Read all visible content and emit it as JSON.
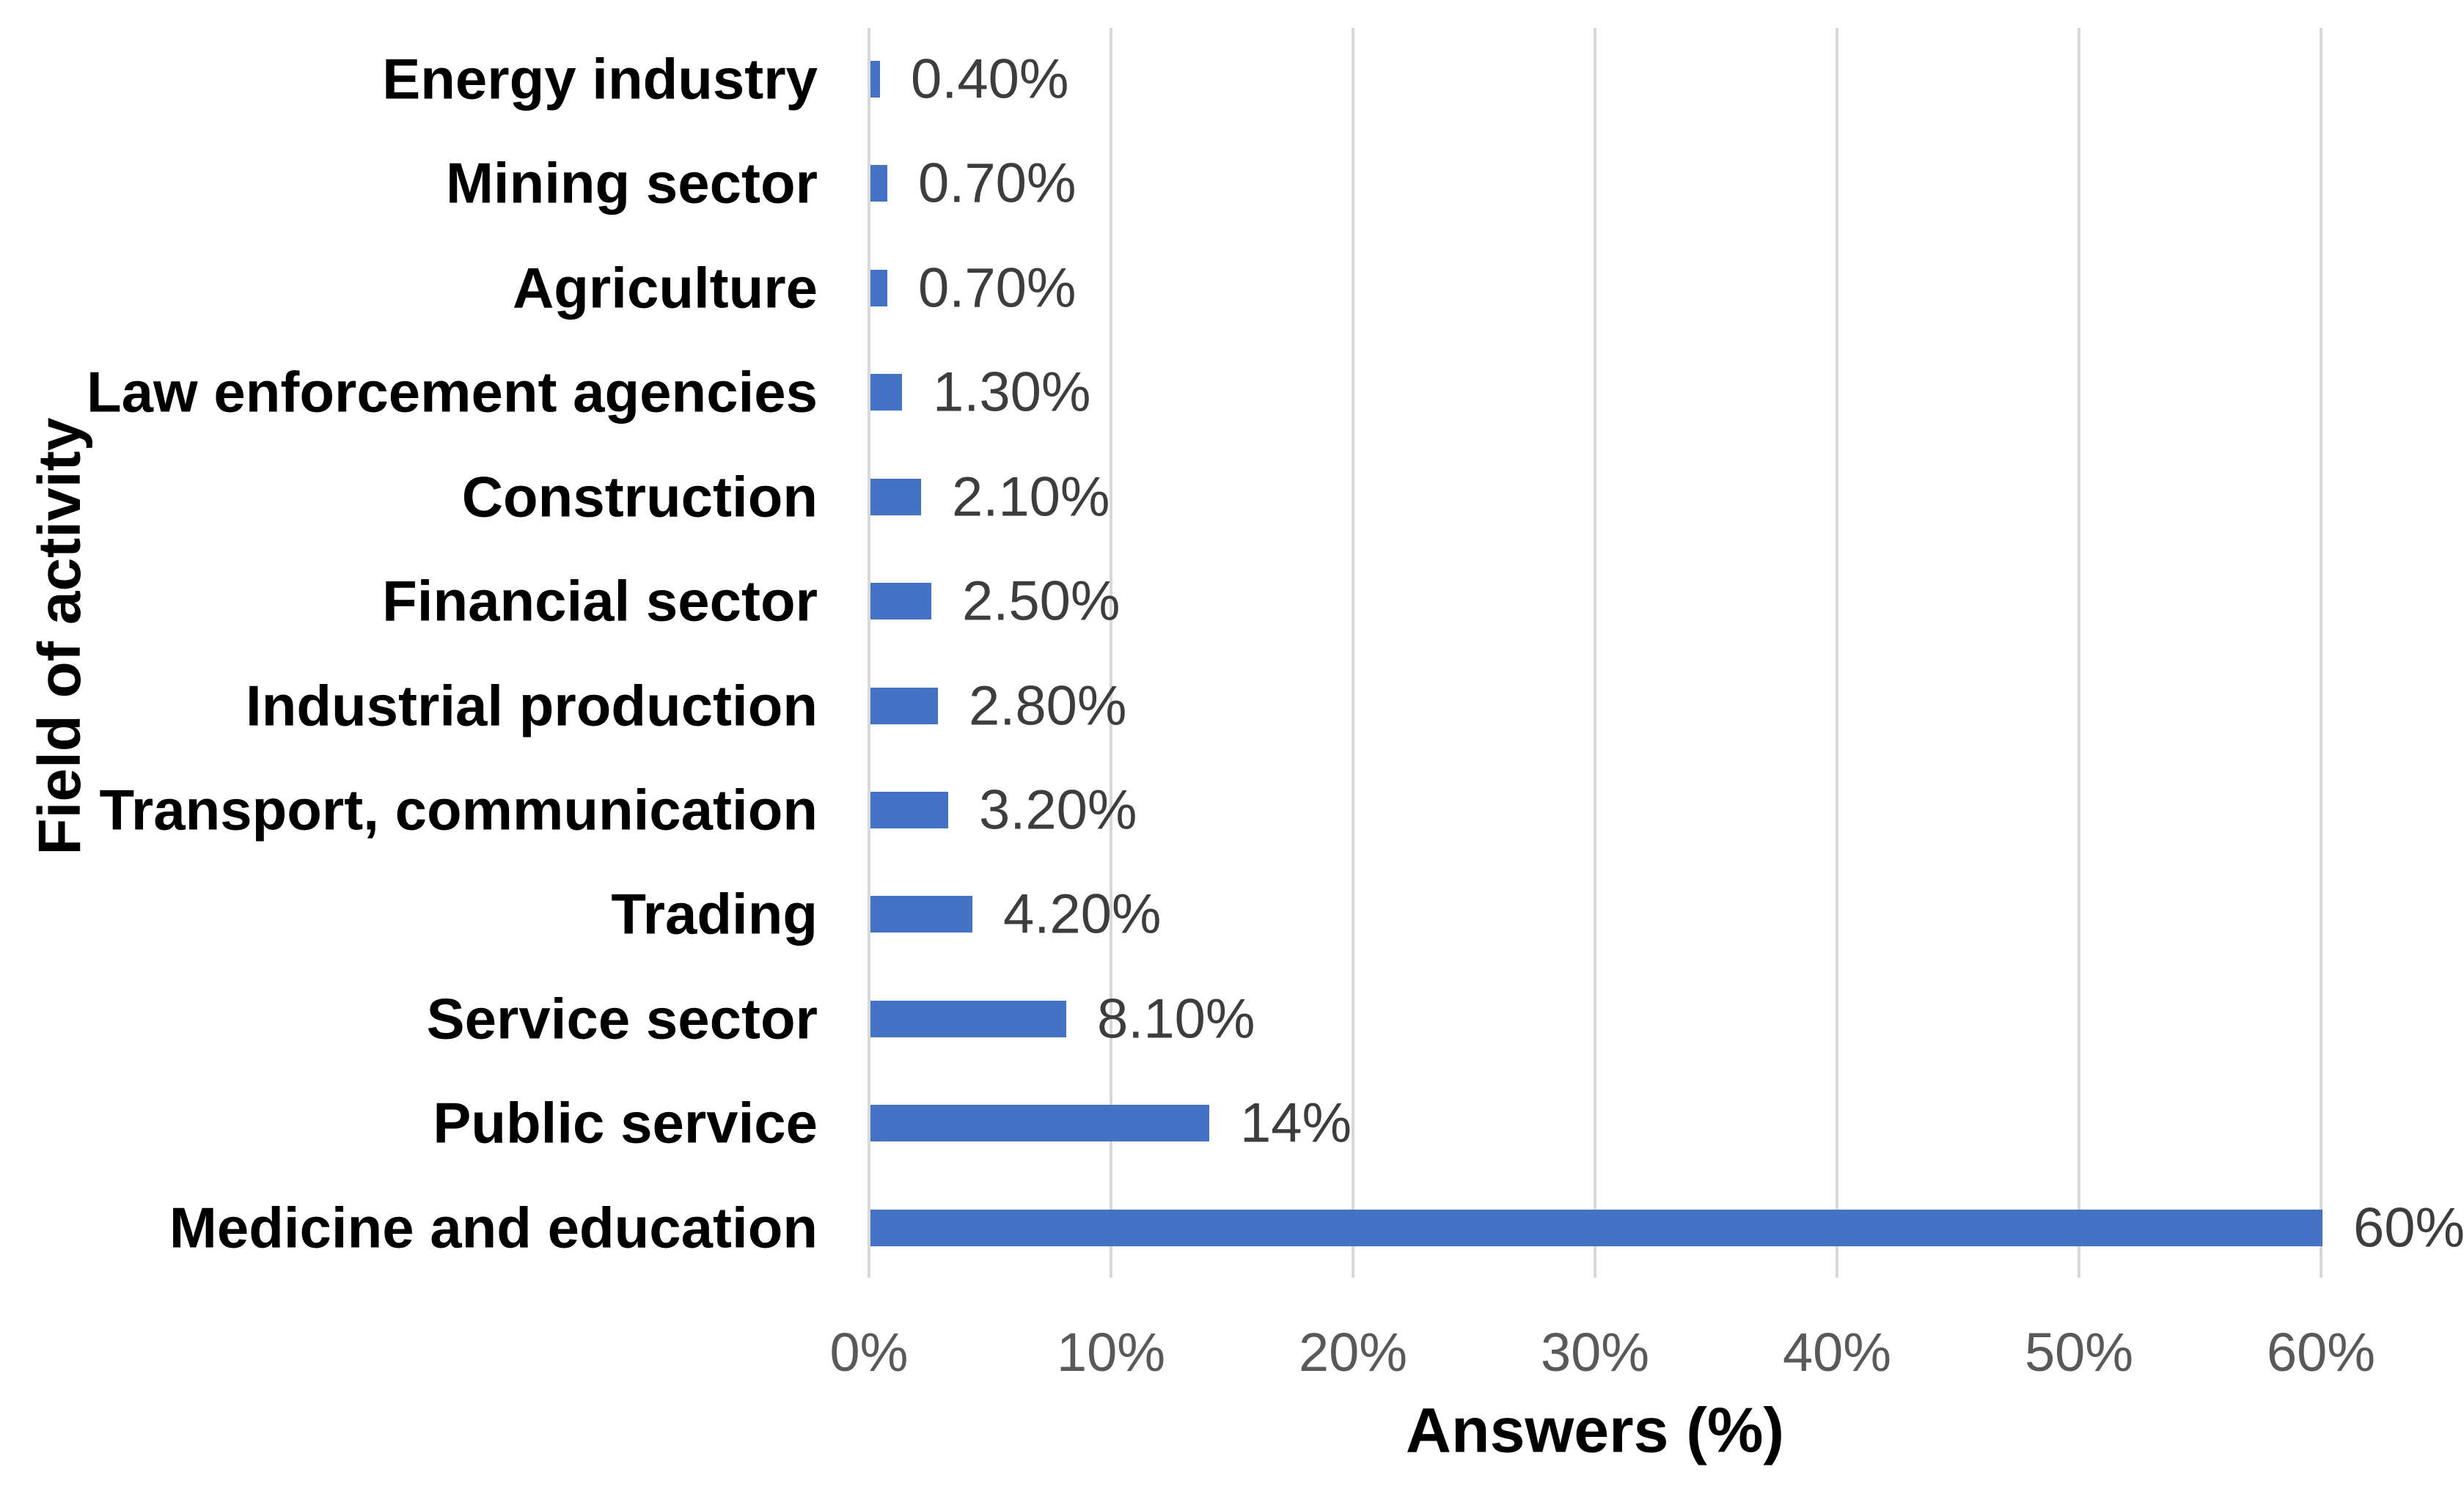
{
  "chart_data": {
    "type": "bar",
    "orientation": "horizontal",
    "title": "",
    "xlabel": "Answers (%)",
    "ylabel": "Field of activity",
    "categories": [
      "Energy industry",
      "Mining sector",
      "Agriculture",
      "Law enforcement agencies",
      "Construction",
      "Financial sector",
      "Industrial production",
      "Transport, communication",
      "Trading",
      "Service sector",
      "Public service",
      "Medicine and education"
    ],
    "values": [
      0.4,
      0.7,
      0.7,
      1.3,
      2.1,
      2.5,
      2.8,
      3.2,
      4.2,
      8.1,
      14,
      60
    ],
    "value_labels": [
      "0.40%",
      "0.70%",
      "0.70%",
      "1.30%",
      "2.10%",
      "2.50%",
      "2.80%",
      "3.20%",
      "4.20%",
      "8.10%",
      "14%",
      "60%"
    ],
    "xlim": [
      0,
      60
    ],
    "x_tick_values": [
      0,
      10,
      20,
      30,
      40,
      50,
      60
    ],
    "x_tick_labels": [
      "0%",
      "10%",
      "20%",
      "30%",
      "40%",
      "50%",
      "60%"
    ],
    "grid": "vertical-gridlines-on",
    "legend": "none",
    "colors": {
      "bar": "#4472C4",
      "gridline": "#D8D8D8",
      "tick_label": "#595959",
      "value_label": "#3D3D3D",
      "category_label": "#000000",
      "axis_title": "#000000",
      "background": "#FFFFFF"
    }
  }
}
